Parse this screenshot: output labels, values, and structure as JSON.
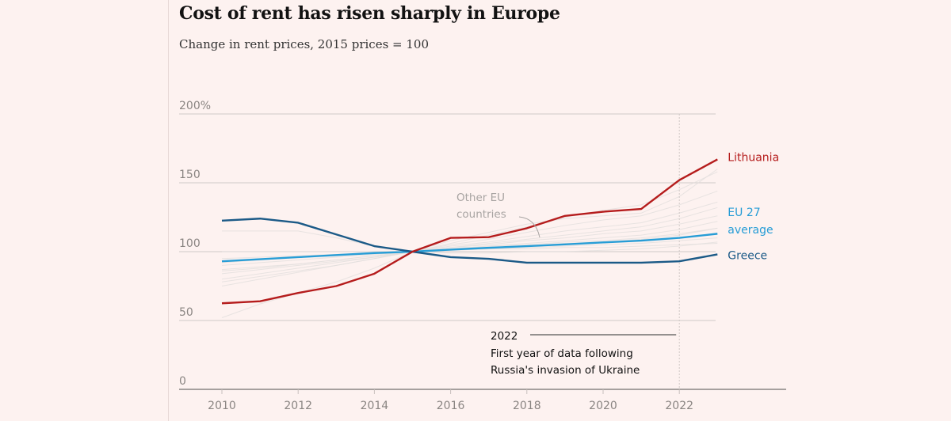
{
  "chart_data": {
    "type": "line",
    "title": "Cost of rent has risen sharply in Europe",
    "subtitle": "Change in rent prices, 2015 prices = 100",
    "xlabel": "",
    "ylabel": "",
    "x": [
      2010,
      2011,
      2012,
      2013,
      2014,
      2015,
      2016,
      2017,
      2018,
      2019,
      2020,
      2021,
      2022,
      2023
    ],
    "xticks": [
      "2010",
      "2012",
      "2014",
      "2016",
      "2018",
      "2020",
      "2022"
    ],
    "xtick_values": [
      2010,
      2012,
      2014,
      2016,
      2018,
      2020,
      2022
    ],
    "xlim": [
      2009,
      2025
    ],
    "ylim": [
      0,
      200
    ],
    "yticks": [
      0,
      50,
      100,
      150,
      200
    ],
    "ytick_labels": [
      "0",
      "50",
      "100",
      "150",
      "200%"
    ],
    "grid": true,
    "series": [
      {
        "name": "Lithuania",
        "label": "Lithuania",
        "color": "#b51c1c",
        "values": [
          62.5,
          64,
          70,
          75,
          84,
          100,
          110,
          110.5,
          117,
          126,
          129,
          131,
          152,
          167
        ]
      },
      {
        "name": "EU 27 average",
        "label_lines": [
          "EU 27",
          "average"
        ],
        "color": "#279dd6",
        "values": [
          93,
          94.5,
          96,
          97.5,
          99,
          100,
          101.5,
          102.8,
          104,
          105.3,
          106.7,
          108,
          110,
          113
        ]
      },
      {
        "name": "Greece",
        "label": "Greece",
        "color": "#1b5a87",
        "values": [
          122.5,
          124,
          121,
          112.5,
          104,
          100,
          96,
          94.8,
          92,
          92,
          92,
          92,
          93,
          98
        ]
      }
    ],
    "background_series": {
      "name": "Other EU countries",
      "label_lines": [
        "Other EU",
        "countries"
      ],
      "color": "#e2dedd",
      "values": [
        [
          52,
          62,
          70,
          78,
          88,
          100,
          108,
          114,
          120,
          124,
          126,
          128,
          140,
          160
        ],
        [
          75,
          80,
          85,
          90,
          95,
          100,
          106,
          112,
          118,
          125,
          130,
          134,
          145,
          158
        ],
        [
          78,
          82,
          86,
          90,
          95,
          100,
          105,
          109,
          114,
          119,
          123,
          126,
          134,
          144
        ],
        [
          80,
          84,
          88,
          92,
          96,
          100,
          104,
          107,
          111,
          115,
          118,
          121,
          128,
          136
        ],
        [
          84,
          87,
          90,
          93,
          96,
          100,
          103,
          106,
          109,
          112,
          115,
          118,
          124,
          132
        ],
        [
          87,
          89,
          91,
          94,
          97,
          100,
          103,
          105,
          108,
          110,
          113,
          115,
          120,
          126
        ],
        [
          90,
          92,
          94,
          96,
          98,
          100,
          102,
          104,
          106,
          108,
          110,
          112,
          116,
          122
        ],
        [
          95,
          96,
          97,
          98,
          99,
          100,
          101,
          103,
          104,
          106,
          107,
          109,
          112,
          117
        ],
        [
          100,
          100,
          100,
          100,
          100,
          100,
          101,
          102,
          103,
          104,
          105,
          106,
          108,
          110
        ],
        [
          115,
          115,
          115,
          110,
          104,
          100,
          99,
          99,
          100,
          100,
          101,
          102,
          104,
          107
        ],
        [
          92,
          94,
          96,
          97,
          99,
          100,
          101,
          102,
          102,
          103,
          103,
          104,
          105,
          106
        ],
        [
          86,
          88,
          91,
          94,
          97,
          100,
          102,
          104,
          105,
          107,
          108,
          110,
          113,
          117
        ]
      ]
    },
    "annotations": [
      {
        "label": "2022",
        "text_lines": [
          "First year of data following",
          "Russia's invasion of Ukraine"
        ],
        "x": 2022
      }
    ]
  }
}
